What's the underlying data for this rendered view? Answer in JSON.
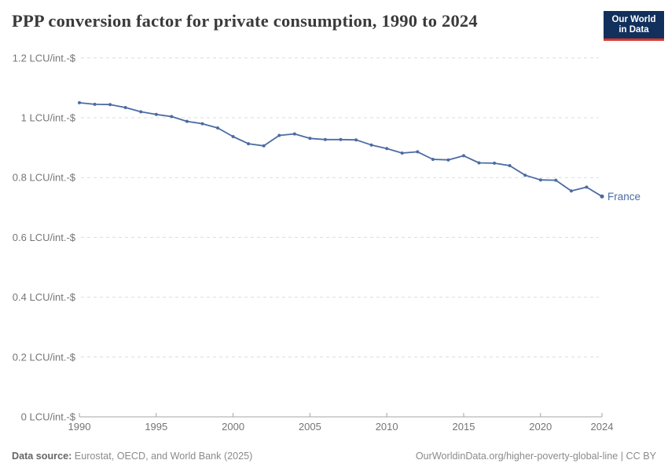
{
  "header": {
    "title": "PPP conversion factor for private consumption, 1990 to 2024",
    "logo": {
      "line1": "Our World",
      "line2": "in Data"
    }
  },
  "footer": {
    "source_label": "Data source:",
    "source_text": " Eurostat, OECD, and World Bank (2025)",
    "attribution": "OurWorldinData.org/higher-poverty-global-line | CC BY"
  },
  "colors": {
    "line": "#4c6ba3",
    "logo_bg": "#12305c",
    "logo_bar": "#dc3428",
    "grid": "#dcdcdc",
    "axis": "#a5a5a5",
    "tick_text": "#757575",
    "title_text": "#3a3a3a"
  },
  "chart_data": {
    "type": "line",
    "title": "PPP conversion factor for private consumption, 1990 to 2024",
    "unit": "LCU/int.-$",
    "ylim": [
      0,
      1.2
    ],
    "grid": true,
    "legend_position": "end-of-line",
    "y_ticks": [
      {
        "value": 0,
        "label": "0 LCU/int.-$"
      },
      {
        "value": 0.2,
        "label": "0.2 LCU/int.-$"
      },
      {
        "value": 0.4,
        "label": "0.4 LCU/int.-$"
      },
      {
        "value": 0.6,
        "label": "0.6 LCU/int.-$"
      },
      {
        "value": 0.8,
        "label": "0.8 LCU/int.-$"
      },
      {
        "value": 1,
        "label": "1 LCU/int.-$"
      },
      {
        "value": 1.2,
        "label": "1.2 LCU/int.-$"
      }
    ],
    "x_ticks": [
      1990,
      1995,
      2000,
      2005,
      2010,
      2015,
      2020,
      2024
    ],
    "series": [
      {
        "name": "France",
        "color": "#4c6ba3",
        "x": [
          1990,
          1991,
          1992,
          1993,
          1994,
          1995,
          1996,
          1997,
          1998,
          1999,
          2000,
          2001,
          2002,
          2003,
          2004,
          2005,
          2006,
          2007,
          2008,
          2009,
          2010,
          2011,
          2012,
          2013,
          2014,
          2015,
          2016,
          2017,
          2018,
          2019,
          2020,
          2021,
          2022,
          2023,
          2024
        ],
        "values": [
          1.05,
          1.045,
          1.044,
          1.034,
          1.02,
          1.011,
          1.004,
          0.988,
          0.98,
          0.966,
          0.937,
          0.913,
          0.906,
          0.941,
          0.946,
          0.931,
          0.927,
          0.927,
          0.926,
          0.909,
          0.897,
          0.882,
          0.886,
          0.861,
          0.859,
          0.873,
          0.849,
          0.848,
          0.84,
          0.808,
          0.792,
          0.791,
          0.755,
          0.768,
          0.737
        ]
      }
    ]
  }
}
